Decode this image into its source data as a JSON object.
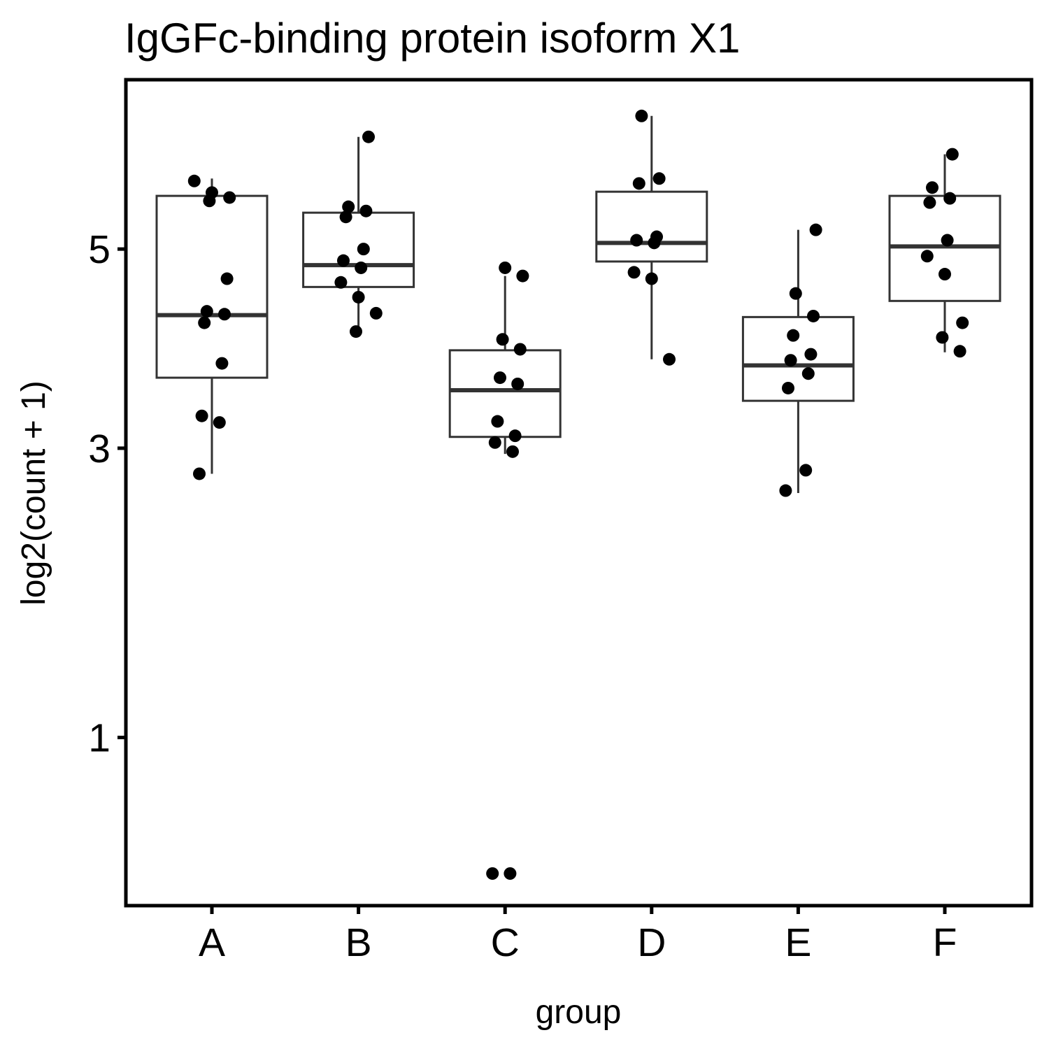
{
  "chart_data": {
    "type": "box",
    "title": "IgGFc-binding protein isoform X1",
    "xlabel": "group",
    "ylabel": "log2(count + 1)",
    "y_scale": "sqrt",
    "ylim": [
      0.33,
      7.1
    ],
    "yticks": [
      1,
      3,
      5
    ],
    "categories": [
      "A",
      "B",
      "C",
      "D",
      "E",
      "F"
    ],
    "boxes": [
      {
        "group": "A",
        "lower_whisker": 2.78,
        "q1": 3.65,
        "median": 4.28,
        "q3": 5.62,
        "upper_whisker": 5.83
      },
      {
        "group": "B",
        "lower_whisker": 4.11,
        "q1": 4.58,
        "median": 4.82,
        "q3": 5.42,
        "upper_whisker": 6.35
      },
      {
        "group": "C",
        "lower_whisker": 2.95,
        "q1": 3.1,
        "median": 3.53,
        "q3": 3.92,
        "upper_whisker": 4.7
      },
      {
        "group": "D",
        "lower_whisker": 3.83,
        "q1": 4.86,
        "median": 5.07,
        "q3": 5.67,
        "upper_whisker": 6.62
      },
      {
        "group": "E",
        "lower_whisker": 2.62,
        "q1": 3.43,
        "median": 3.77,
        "q3": 4.26,
        "upper_whisker": 5.22
      },
      {
        "group": "F",
        "lower_whisker": 3.9,
        "q1": 4.43,
        "median": 5.03,
        "q3": 5.62,
        "upper_whisker": 6.13
      }
    ],
    "points": {
      "A": [
        5.8,
        5.66,
        5.6,
        5.56,
        4.67,
        4.32,
        4.29,
        4.2,
        3.79,
        3.29,
        3.23,
        2.78
      ],
      "B": [
        6.35,
        5.49,
        5.44,
        5.37,
        5.0,
        4.87,
        4.79,
        4.63,
        4.47,
        4.3,
        4.11
      ],
      "C": [
        4.79,
        4.7,
        4.03,
        3.93,
        3.65,
        3.59,
        3.24,
        3.11,
        3.05,
        2.97,
        0.43,
        0.43
      ],
      "D": [
        6.62,
        5.83,
        5.77,
        5.14,
        5.1,
        5.07,
        4.74,
        4.67,
        3.83
      ],
      "E": [
        5.22,
        4.51,
        4.27,
        4.07,
        3.88,
        3.82,
        3.69,
        3.55,
        2.81,
        2.64
      ],
      "F": [
        6.13,
        5.72,
        5.59,
        5.54,
        5.1,
        4.92,
        4.72,
        4.2,
        4.05,
        3.91
      ]
    }
  }
}
